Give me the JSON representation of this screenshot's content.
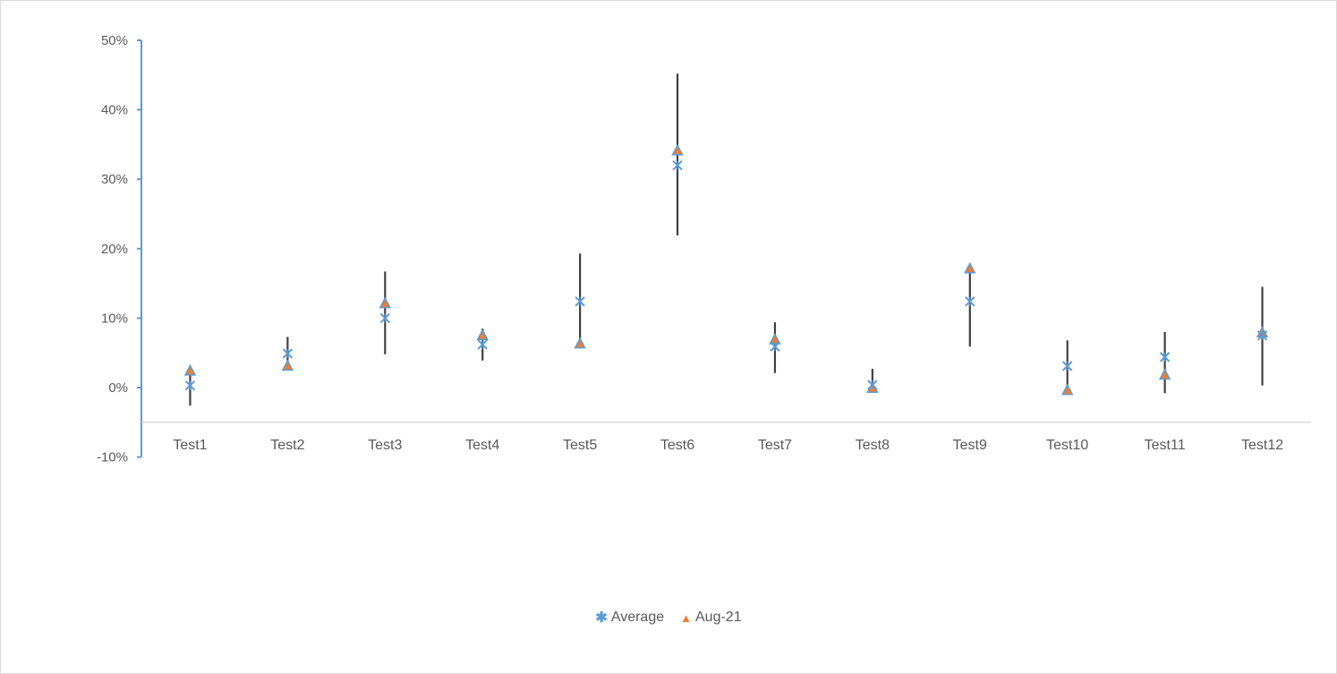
{
  "chart_data": {
    "type": "scatter",
    "title": "",
    "xlabel": "",
    "ylabel": "",
    "ylim": [
      -0.1,
      0.5
    ],
    "yticks": [
      "50%",
      "40%",
      "30%",
      "20%",
      "10%",
      "0%",
      "-10%"
    ],
    "ytick_values": [
      0.5,
      0.4,
      0.3,
      0.2,
      0.1,
      0.0,
      -0.1
    ],
    "x_axis_crosses_at": -0.05,
    "grid": false,
    "legend_position": "bottom",
    "categories": [
      "Test1",
      "Test2",
      "Test3",
      "Test4",
      "Test5",
      "Test6",
      "Test7",
      "Test8",
      "Test9",
      "Test10",
      "Test11",
      "Test12"
    ],
    "series": [
      {
        "name": "Average",
        "marker": "x",
        "color": "#5B9BD5",
        "values": [
          0.003,
          0.049,
          0.1,
          0.062,
          0.124,
          0.32,
          0.059,
          0.004,
          0.124,
          0.031,
          0.044,
          0.075
        ]
      },
      {
        "name": "Aug-21",
        "marker": "triangle",
        "color": "#ED7D31",
        "edge_color": "#5B9BD5",
        "values": [
          0.024,
          0.031,
          0.121,
          0.075,
          0.063,
          0.341,
          0.069,
          -0.001,
          0.171,
          -0.004,
          0.018,
          0.079
        ]
      }
    ],
    "error_bars": {
      "color": "#404040",
      "low": [
        -0.026,
        0.031,
        0.048,
        0.039,
        0.063,
        0.219,
        0.021,
        -0.001,
        0.059,
        -0.004,
        -0.008,
        0.003
      ],
      "high": [
        0.018,
        0.073,
        0.167,
        0.085,
        0.193,
        0.452,
        0.094,
        0.027,
        0.171,
        0.068,
        0.08,
        0.145
      ]
    }
  },
  "legend": {
    "items": [
      {
        "label": "Average",
        "symbol": "✱"
      },
      {
        "label": "Aug-21",
        "symbol": "▲"
      }
    ]
  }
}
